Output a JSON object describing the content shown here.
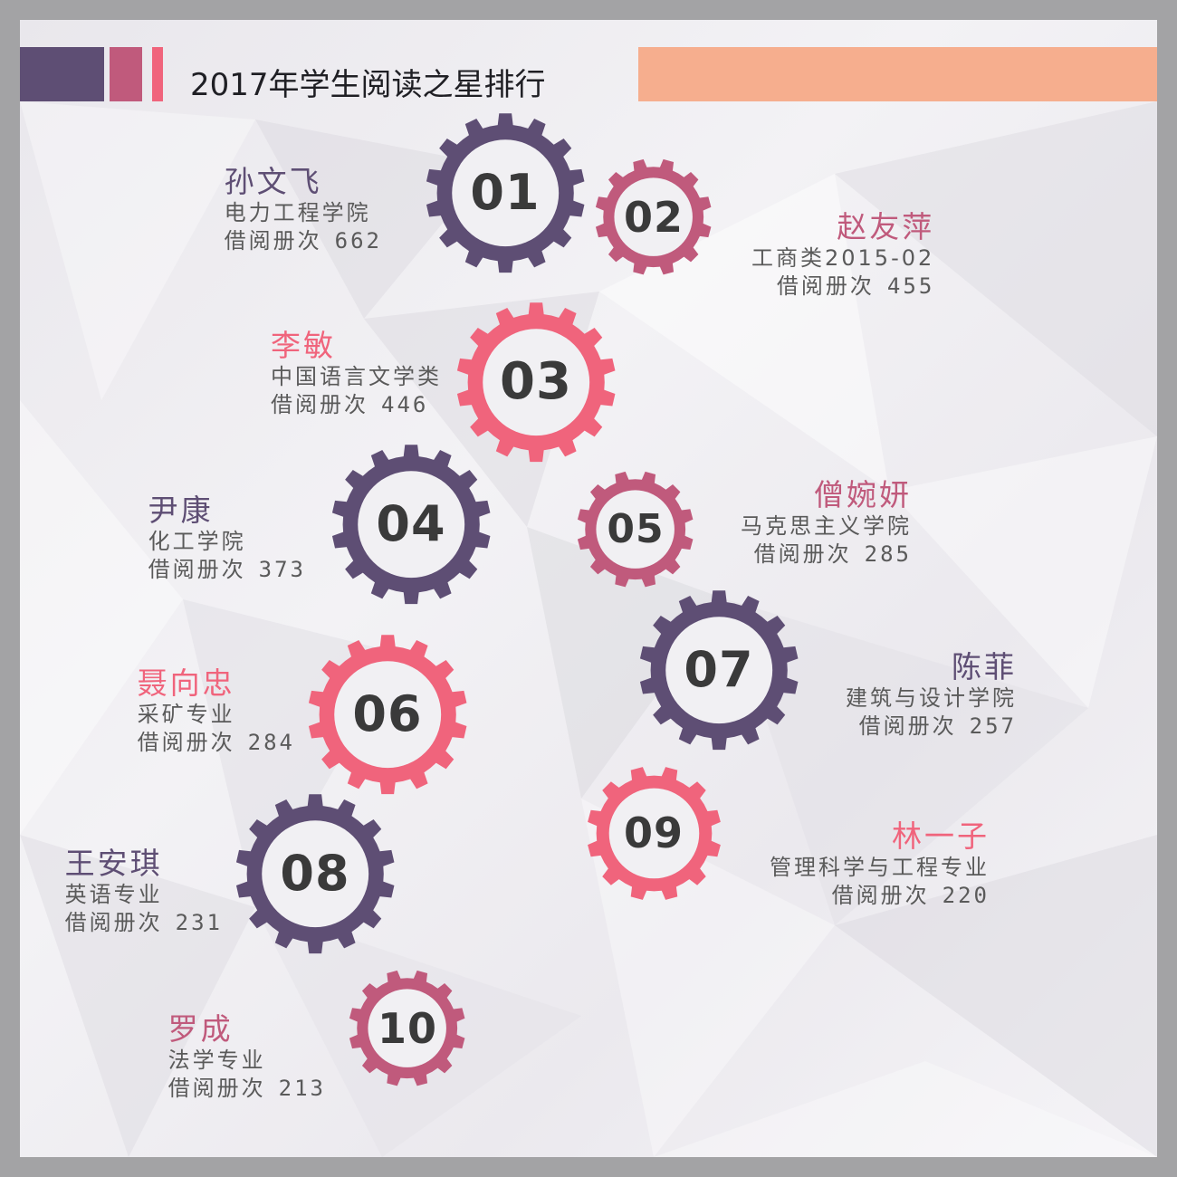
{
  "title": "2017年学生阅读之星排行",
  "colors": {
    "purple": "#5e4e74",
    "pink": "#f0647c",
    "rose": "#c05a7c",
    "orange_bar": "#f6ae8e",
    "inner_fill": "#f1f0f3",
    "number_text": "#3a3a3a"
  },
  "count_label": "借阅册次",
  "students": [
    {
      "rank": "01",
      "name": "孙文飞",
      "major": "电力工程学院",
      "count": "662",
      "color": "purple"
    },
    {
      "rank": "02",
      "name": "赵友萍",
      "major": "工商类2015-02",
      "count": "455",
      "color": "rose"
    },
    {
      "rank": "03",
      "name": "李敏",
      "major": "中国语言文学类",
      "count": "446",
      "color": "pink"
    },
    {
      "rank": "04",
      "name": "尹康",
      "major": "化工学院",
      "count": "373",
      "color": "purple"
    },
    {
      "rank": "05",
      "name": "僧婉妍",
      "major": "马克思主义学院",
      "count": "285",
      "color": "rose"
    },
    {
      "rank": "06",
      "name": "聂向忠",
      "major": "采矿专业",
      "count": "284",
      "color": "pink"
    },
    {
      "rank": "07",
      "name": "陈菲",
      "major": "建筑与设计学院",
      "count": "257",
      "color": "purple"
    },
    {
      "rank": "08",
      "name": "王安琪",
      "major": "英语专业",
      "count": "231",
      "color": "purple"
    },
    {
      "rank": "09",
      "name": "林一子",
      "major": "管理科学与工程专业",
      "count": "220",
      "color": "pink"
    },
    {
      "rank": "10",
      "name": "罗成",
      "major": "法学专业",
      "count": "213",
      "color": "rose"
    }
  ]
}
